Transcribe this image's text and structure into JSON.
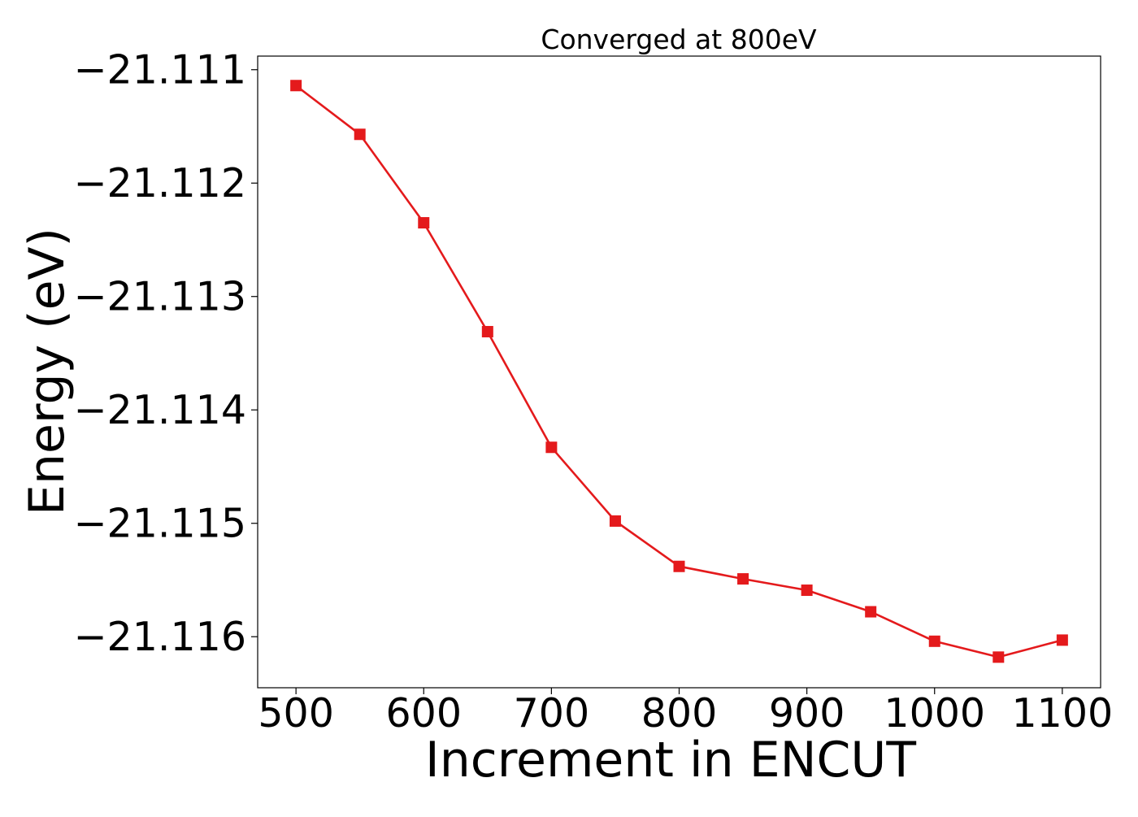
{
  "chart_data": {
    "type": "line",
    "title": "Converged at 800eV",
    "xlabel": "Increment in ENCUT",
    "ylabel": "Energy (eV)",
    "xlim": [
      470,
      1130
    ],
    "ylim": [
      -21.11645,
      -21.11088
    ],
    "x_ticks": [
      500,
      600,
      700,
      800,
      900,
      1000,
      1100
    ],
    "y_ticks": [
      -21.111,
      -21.112,
      -21.113,
      -21.114,
      -21.115,
      -21.116
    ],
    "y_tick_labels": [
      "−21.111",
      "−21.112",
      "−21.113",
      "−21.114",
      "−21.115",
      "−21.116"
    ],
    "grid": false,
    "series": [
      {
        "color": "#e41a1c",
        "marker": "square",
        "x": [
          500,
          550,
          600,
          650,
          700,
          750,
          800,
          850,
          900,
          950,
          1000,
          1050,
          1100
        ],
        "y": [
          -21.11114,
          -21.11157,
          -21.11235,
          -21.11331,
          -21.11433,
          -21.11498,
          -21.11538,
          -21.11549,
          -21.11559,
          -21.11578,
          -21.11604,
          -21.11618,
          -21.11603
        ]
      }
    ]
  }
}
